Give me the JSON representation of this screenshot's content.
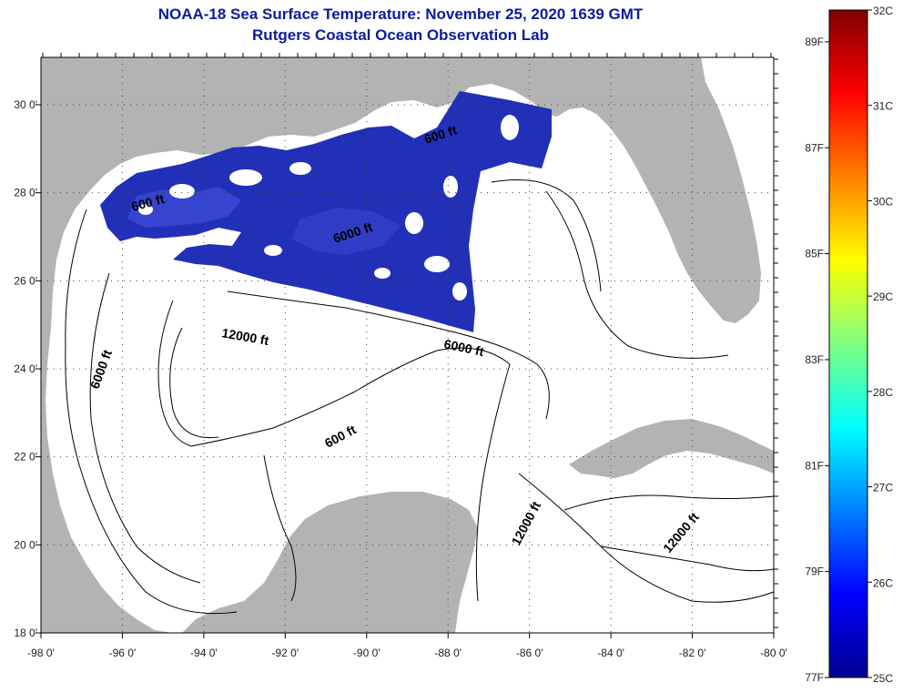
{
  "title": "NOAA-18 Sea Surface Temperature:  November 25, 2020 1639 GMT",
  "subtitle": "Rutgers Coastal Ocean Observation Lab",
  "map": {
    "lon_ticks": [
      "-98 0'",
      "-96 0'",
      "-94 0'",
      "-92 0'",
      "-90 0'",
      "-88 0'",
      "-86 0'",
      "-84 0'",
      "-82 0'",
      "-80 0'"
    ],
    "lat_ticks": [
      "30 0'",
      "28 0'",
      "26 0'",
      "24 0'",
      "22 0'",
      "20 0'",
      "18 0'"
    ],
    "contour_labels": [
      "600 ft",
      "6000 ft",
      "12000 ft",
      "6000 ft",
      "6000 ft",
      "600 ft",
      "12000 ft",
      "12000 ft",
      "600 ft"
    ],
    "colors": {
      "land": "#b3b3b3",
      "ocean": "#ffffff",
      "sst_swath": "#1f2fb0",
      "gridline": "#555555"
    }
  },
  "colorbar": {
    "fahrenheit_labels": [
      "89F",
      "87F",
      "85F",
      "83F",
      "81F",
      "79F",
      "77F"
    ],
    "celsius_labels": [
      "32C",
      "31C",
      "30C",
      "29C",
      "28C",
      "27C",
      "26C",
      "25C"
    ],
    "range_c": [
      25,
      32
    ],
    "colormap": "jet"
  }
}
